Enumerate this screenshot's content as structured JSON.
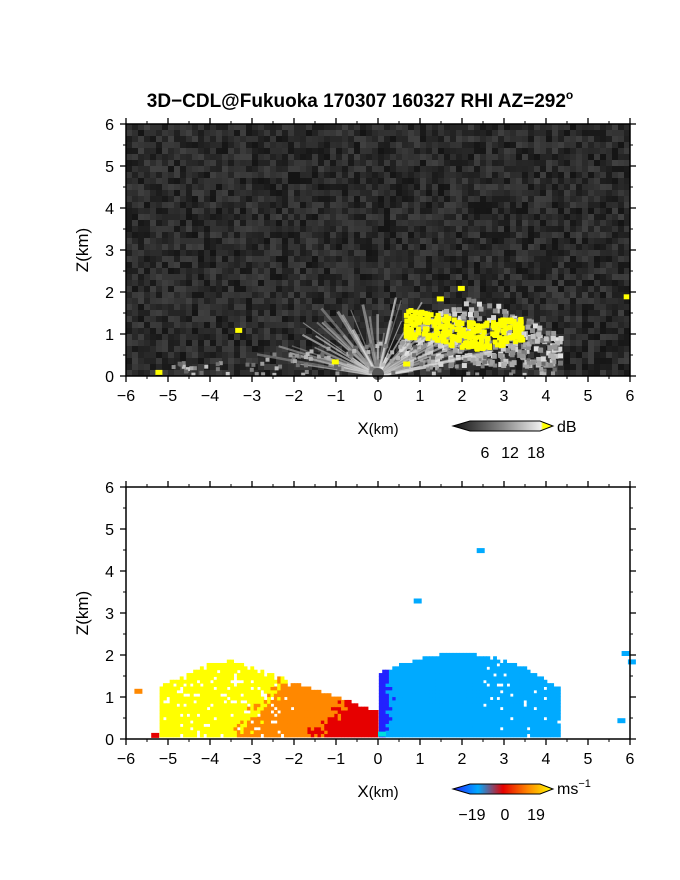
{
  "figure": {
    "title": "3D−CDL@Fukuoka 170307 160327 RHI AZ=292",
    "title_degree": "o"
  },
  "chart_data": [
    {
      "type": "heatmap",
      "panel": "snr",
      "xlabel_main": "X",
      "xlabel_unit": "(km)",
      "ylabel": "Z(km)",
      "xlim": [
        -6,
        6
      ],
      "ylim": [
        0,
        6
      ],
      "xticks": [
        "−6",
        "−5",
        "−4",
        "−3",
        "−2",
        "−1",
        "0",
        "1",
        "2",
        "3",
        "4",
        "5",
        "6"
      ],
      "yticks": [
        "0",
        "1",
        "2",
        "3",
        "4",
        "5",
        "6"
      ],
      "grid": false,
      "colorbar": {
        "unit": "dB",
        "ticks": [
          "6",
          "12",
          "18"
        ],
        "range": [
          0,
          21
        ],
        "colors": [
          "#111111",
          "#555555",
          "#999999",
          "#dddddd",
          "#ffff00"
        ]
      },
      "features": [
        {
          "label": "fan-shaped echo",
          "x_range": [
            -2.5,
            2.5
          ],
          "z_range": [
            0,
            1.9
          ]
        },
        {
          "label": "strong echo (>18 dB)",
          "x_range": [
            0.6,
            3.4
          ],
          "z_range": [
            0.3,
            1.7
          ]
        },
        {
          "label": "cloud echo",
          "x_range": [
            0.5,
            4.3
          ],
          "z_range": [
            0.2,
            2.1
          ]
        }
      ]
    },
    {
      "type": "heatmap",
      "panel": "velocity",
      "xlabel_main": "X",
      "xlabel_unit": "(km)",
      "ylabel": "Z(km)",
      "xlim": [
        -6,
        6
      ],
      "ylim": [
        0,
        6
      ],
      "xticks": [
        "−6",
        "−5",
        "−4",
        "−3",
        "−2",
        "−1",
        "0",
        "1",
        "2",
        "3",
        "4",
        "5",
        "6"
      ],
      "yticks": [
        "0",
        "1",
        "2",
        "3",
        "4",
        "5",
        "6"
      ],
      "grid": false,
      "colorbar": {
        "unit": "ms",
        "unit_exp": "−1",
        "ticks": [
          "−19",
          "0",
          "19"
        ],
        "range": [
          -22,
          22
        ],
        "colors": [
          "#2222ff",
          "#00aaff",
          "#e60000",
          "#ff8800",
          "#ffff00"
        ]
      },
      "features": [
        {
          "label": "receding flow",
          "x_range": [
            -5.2,
            0
          ],
          "z_range": [
            0,
            2.0
          ],
          "velocity_ms": 15
        },
        {
          "label": "approaching flow",
          "x_range": [
            0,
            4.3
          ],
          "z_range": [
            0,
            2.2
          ],
          "velocity_ms": -15
        }
      ]
    }
  ]
}
